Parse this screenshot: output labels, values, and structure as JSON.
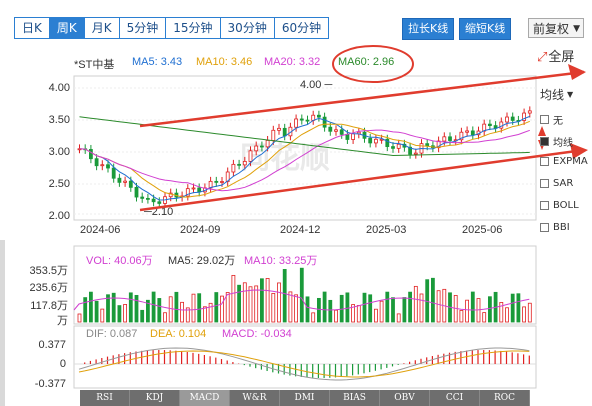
{
  "tabs": [
    "日K",
    "周K",
    "月K",
    "5分钟",
    "15分钟",
    "30分钟",
    "60分钟"
  ],
  "active_tab": "周K",
  "buttons": {
    "stretch": "拉长K线",
    "shrink": "缩短K线"
  },
  "adjust_select": "前复权",
  "fullscreen_label": "全屏",
  "stock_name": "*ST中基",
  "ma_legend": [
    {
      "label": "MA5: 3.43",
      "color": "#1f6fd1"
    },
    {
      "label": "MA10: 3.46",
      "color": "#e0a10c"
    },
    {
      "label": "MA20: 3.32",
      "color": "#d13fd1"
    },
    {
      "label": "MA60: 2.96",
      "color": "#2b8a2b"
    }
  ],
  "overlay_options": [
    {
      "label": "无",
      "checked": false
    },
    {
      "label": "均线",
      "checked": true
    },
    {
      "label": "EXPMA",
      "checked": false
    },
    {
      "label": "SAR",
      "checked": false
    },
    {
      "label": "BOLL",
      "checked": false
    },
    {
      "label": "BBI",
      "checked": false
    }
  ],
  "overlay_selected_display": "均线",
  "price_axis": [
    "4.00",
    "3.50",
    "3.00",
    "2.50",
    "2.00"
  ],
  "date_axis": [
    "2024-06",
    "2024-09",
    "2024-12",
    "2025-03",
    "2025-06"
  ],
  "annotations": {
    "high": "4.00",
    "low": "2.10"
  },
  "volume_legend": [
    {
      "label": "VOL: 40.06万",
      "color": "#d13fd1"
    },
    {
      "label": "MA5: 29.02万",
      "color": "#333333"
    },
    {
      "label": "MA10: 33.25万",
      "color": "#d13fd1"
    }
  ],
  "volume_axis": [
    "353.5万",
    "235.6万",
    "117.8万",
    "万"
  ],
  "macd_legend": [
    {
      "label": "DIF: 0.087",
      "color": "#888888"
    },
    {
      "label": "DEA: 0.104",
      "color": "#e0a10c"
    },
    {
      "label": "MACD: -0.034",
      "color": "#d13fd1"
    }
  ],
  "macd_axis": [
    "0.377",
    "0",
    "-0.377"
  ],
  "indicator_tabs": [
    "RSI",
    "KDJ",
    "MACD",
    "W&R",
    "DMI",
    "BIAS",
    "OBV",
    "CCI",
    "ROC"
  ],
  "active_indicator": "MACD",
  "watermark": "同花顺",
  "colors": {
    "up": "#e02020",
    "down": "#1a9a3a",
    "accent": "#2b7fd2",
    "trend": "#e03c2e"
  }
}
